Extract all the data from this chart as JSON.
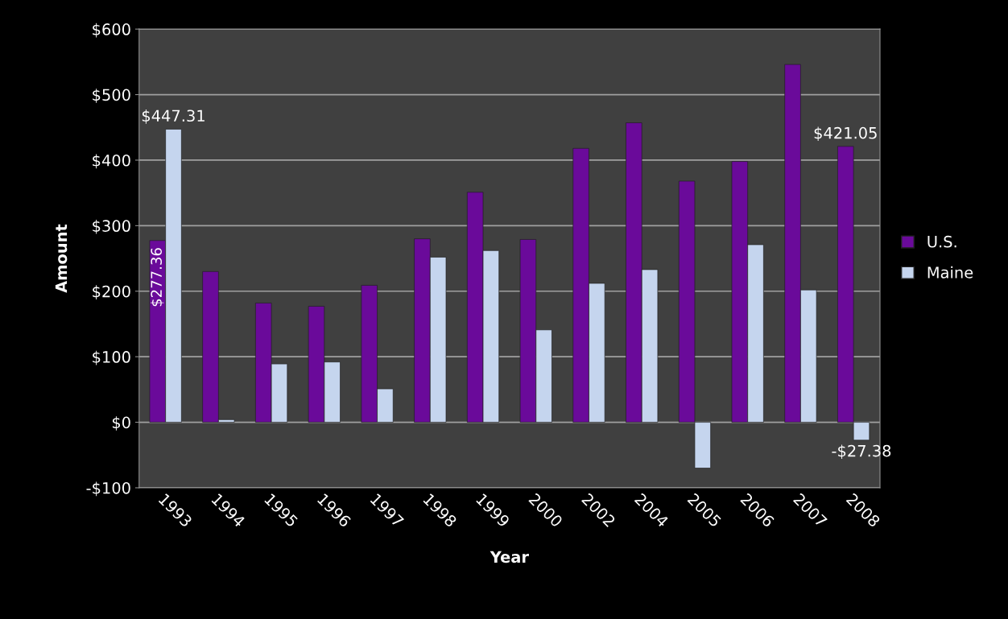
{
  "chart_data": {
    "type": "bar",
    "xlabel": "Year",
    "ylabel": "Amount",
    "categories": [
      "1993",
      "1994",
      "1995",
      "1996",
      "1997",
      "1998",
      "1999",
      "2000",
      "2002",
      "2004",
      "2005",
      "2006",
      "2007",
      "2008"
    ],
    "series": [
      {
        "name": "U.S.",
        "color": "#6a0a9a",
        "values": [
          277.36,
          230,
          182,
          177,
          209,
          280,
          351,
          279,
          418,
          457,
          368,
          398,
          546,
          421.05
        ],
        "value_labels": [
          "$277.36",
          null,
          null,
          null,
          null,
          null,
          null,
          null,
          null,
          null,
          null,
          null,
          null,
          "$421.05"
        ]
      },
      {
        "name": "Maine",
        "color": "#c5d5ee",
        "values": [
          447.31,
          4,
          89,
          92,
          51,
          252,
          262,
          141,
          212,
          233,
          -70,
          271,
          202,
          -27.38
        ],
        "value_labels": [
          "$447.31",
          null,
          null,
          null,
          null,
          null,
          null,
          null,
          null,
          null,
          null,
          null,
          null,
          "-$27.38"
        ]
      }
    ],
    "ylim": [
      -100,
      600
    ],
    "yticks": [
      {
        "value": -100,
        "label": "-$100"
      },
      {
        "value": 0,
        "label": "$0"
      },
      {
        "value": 100,
        "label": "$100"
      },
      {
        "value": 200,
        "label": "$200"
      },
      {
        "value": 300,
        "label": "$300"
      },
      {
        "value": 400,
        "label": "$400"
      },
      {
        "value": 500,
        "label": "$500"
      },
      {
        "value": 600,
        "label": "$600"
      }
    ],
    "grid": "y",
    "legend": "right"
  }
}
